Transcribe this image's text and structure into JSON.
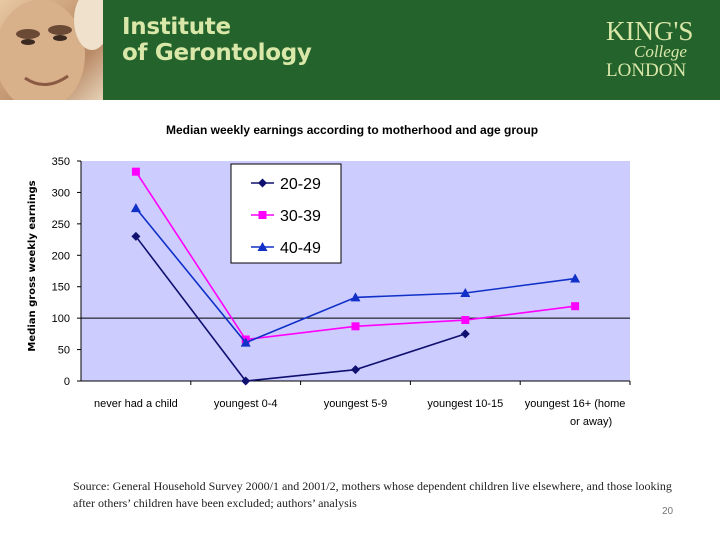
{
  "header": {
    "institute_line1": "Institute",
    "institute_line2": "of Gerontology",
    "kings_logo_line1": "KING'S",
    "kings_logo_line2": "College",
    "kings_logo_line3": "LONDON",
    "banner_color": "#24632c"
  },
  "chart_data": {
    "type": "line",
    "title": "Median weekly earnings according to motherhood and age group",
    "xlabel": "",
    "ylabel": "Median gross weekly earnings",
    "categories": [
      "never had a child",
      "youngest 0-4",
      "youngest 5-9",
      "youngest 10-15",
      "youngest 16+ (home or away)"
    ],
    "ylim": [
      0,
      350
    ],
    "yticks": [
      0,
      50,
      100,
      150,
      200,
      250,
      300,
      350
    ],
    "grid": false,
    "reference_line": 100,
    "plot_background": "#ccccff",
    "legend_position": "top-left",
    "series": [
      {
        "name": "20-29",
        "values": [
          230,
          0,
          18,
          75,
          null
        ],
        "color": "#101070",
        "marker": "diamond"
      },
      {
        "name": "30-39",
        "values": [
          333,
          66,
          87,
          97,
          119
        ],
        "color": "#ff00ff",
        "marker": "square"
      },
      {
        "name": "40-49",
        "values": [
          275,
          61,
          133,
          140,
          163
        ],
        "color": "#1030c8",
        "marker": "triangle"
      }
    ]
  },
  "footer": {
    "source_text": "Source: General Household Survey 2000/1 and 2001/2, mothers whose dependent children live elsewhere, and those looking after others’ children have been excluded; authors’ analysis",
    "slide_number": "20"
  }
}
